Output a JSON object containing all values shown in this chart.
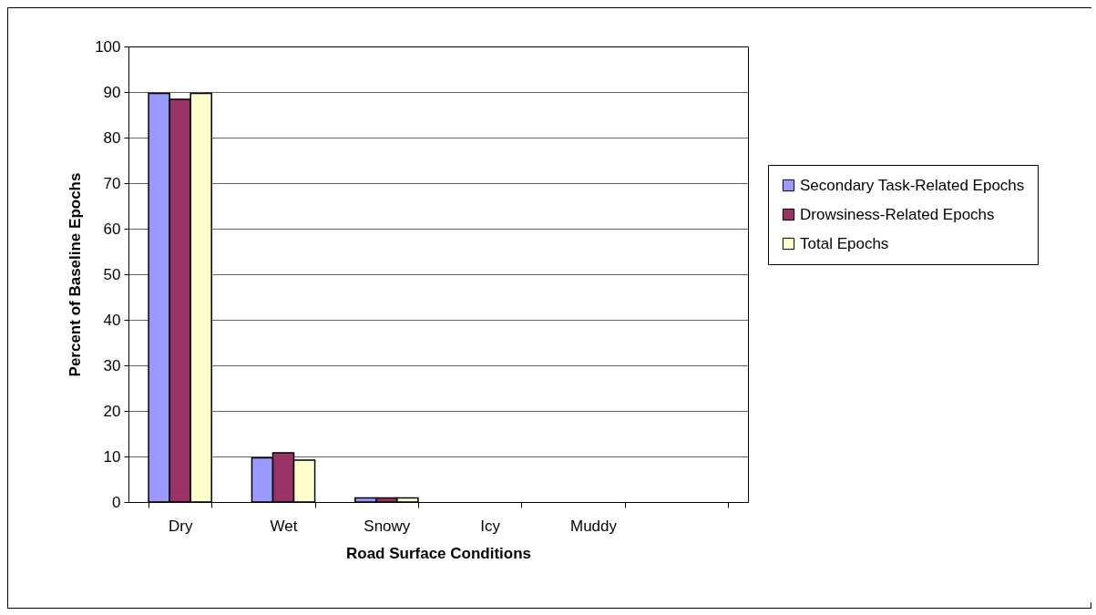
{
  "chart_data": {
    "type": "bar",
    "xlabel": "Road Surface Conditions",
    "ylabel": "Percent of Baseline Epochs",
    "categories": [
      "Dry",
      "Wet",
      "Snowy",
      "Icy",
      "Muddy",
      null
    ],
    "series": [
      {
        "name": "Secondary Task-Related Epochs",
        "color": "#9999ff",
        "values": [
          89.7,
          9.7,
          0.9,
          null,
          null,
          null
        ]
      },
      {
        "name": "Drowsiness-Related Epochs",
        "color": "#993366",
        "values": [
          88.4,
          10.8,
          0.9,
          null,
          null,
          null
        ]
      },
      {
        "name": "Total Epochs",
        "color": "#ffffcc",
        "values": [
          89.7,
          9.2,
          0.9,
          null,
          null,
          null
        ]
      }
    ],
    "ylim": [
      0,
      100
    ],
    "yticks": [
      0,
      10,
      20,
      30,
      40,
      50,
      60,
      70,
      80,
      90,
      100
    ],
    "grid": "y",
    "legend": "right"
  }
}
